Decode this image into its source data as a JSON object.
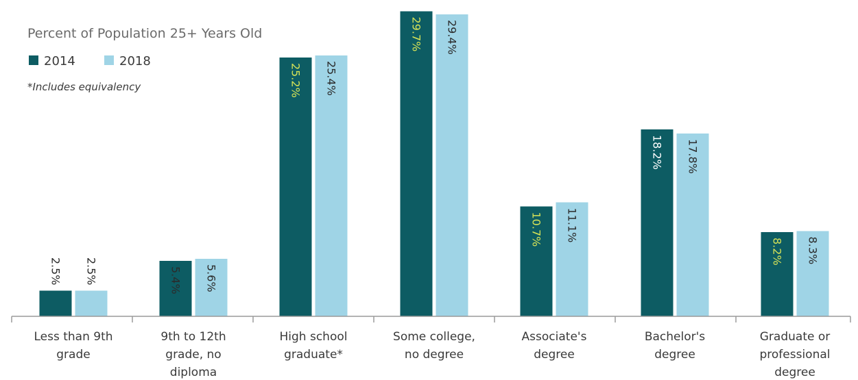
{
  "chart_data": {
    "type": "bar",
    "title": "Percent of Population 25+ Years Old",
    "note": "*Includes equivalency",
    "categories": [
      [
        "Less than 9th",
        "grade"
      ],
      [
        "9th to 12th",
        "grade, no",
        "diploma"
      ],
      [
        "High school",
        "graduate*"
      ],
      [
        "Some college,",
        "no degree"
      ],
      [
        "Associate's",
        "degree"
      ],
      [
        "Bachelor's",
        "degree"
      ],
      [
        "Graduate or",
        "professional",
        "degree"
      ]
    ],
    "series": [
      {
        "name": "2014",
        "color": "#0d5c63",
        "label_colors": [
          "#2b2b2b",
          "#2b2b2b",
          "#d4e157",
          "#d4e157",
          "#d4e157",
          "#ffffff",
          "#d4e157"
        ],
        "values": [
          2.5,
          5.4,
          25.2,
          29.7,
          10.7,
          18.2,
          8.2
        ],
        "labels": [
          "2.5%",
          "5.4%",
          "25.2%",
          "29.7%",
          "10.7%",
          "18.2%",
          "8.2%"
        ]
      },
      {
        "name": "2018",
        "color": "#9fd4e6",
        "label_colors": [
          "#2b2b2b",
          "#2b2b2b",
          "#2b2b2b",
          "#2b2b2b",
          "#2b2b2b",
          "#2b2b2b",
          "#2b2b2b"
        ],
        "values": [
          2.5,
          5.6,
          25.4,
          29.4,
          11.1,
          17.8,
          8.3
        ],
        "labels": [
          "2.5%",
          "5.6%",
          "25.4%",
          "29.4%",
          "11.1%",
          "17.8%",
          "8.3%"
        ]
      }
    ],
    "ylim": [
      0,
      30
    ],
    "grid": false,
    "legend_position": "top-left",
    "axis_color": "#9a9a9a"
  }
}
